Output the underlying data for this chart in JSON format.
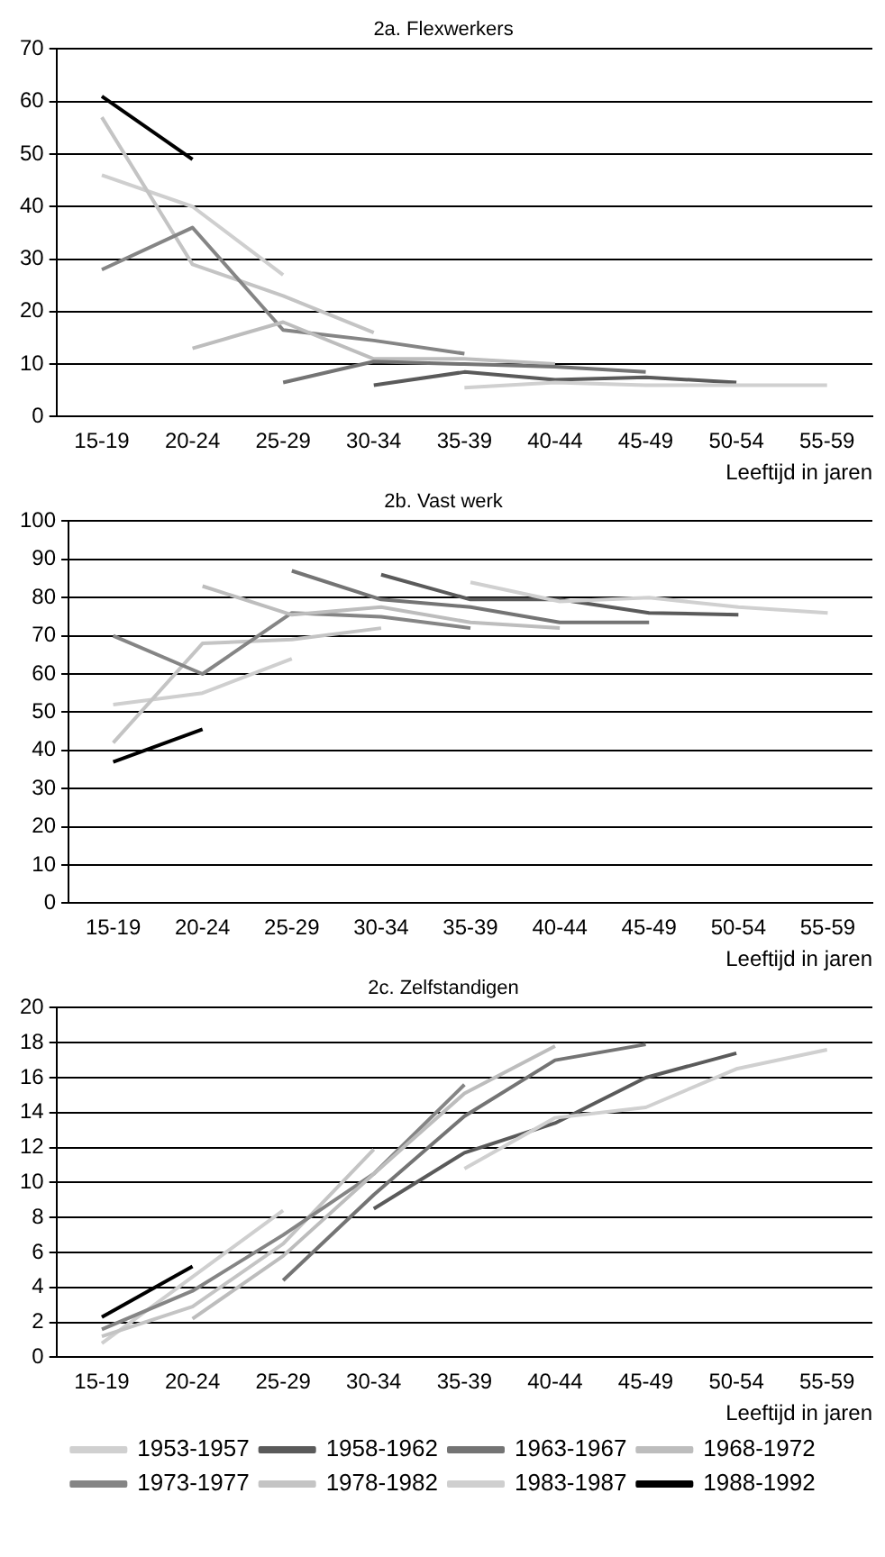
{
  "chart_data": [
    {
      "type": "line",
      "title": "2a. Flexwerkers",
      "xlabel": "Leeftijd in jaren",
      "categories": [
        "15-19",
        "20-24",
        "25-29",
        "30-34",
        "35-39",
        "40-44",
        "45-49",
        "50-54",
        "55-59"
      ],
      "ylim": [
        0,
        70
      ],
      "yticks": [
        0,
        10,
        20,
        30,
        40,
        50,
        60,
        70
      ],
      "grid": "y",
      "marker": "none",
      "series": [
        {
          "color": "#d0d0d0",
          "values": [
            null,
            null,
            null,
            null,
            5.5,
            6.5,
            6,
            6,
            6
          ]
        },
        {
          "color": "#5a5a5a",
          "values": [
            null,
            null,
            null,
            6,
            8.5,
            7,
            7.5,
            6.5,
            null
          ]
        },
        {
          "color": "#747474",
          "values": [
            null,
            null,
            6.5,
            10.5,
            10,
            9.5,
            8.5,
            null,
            null
          ]
        },
        {
          "color": "#bdbdbd",
          "values": [
            null,
            13,
            18,
            11,
            11,
            10,
            null,
            null,
            null
          ]
        },
        {
          "color": "#858585",
          "values": [
            28,
            36,
            16.5,
            14.5,
            12,
            null,
            null,
            null,
            null
          ]
        },
        {
          "color": "#c4c4c4",
          "values": [
            57,
            29,
            23,
            16,
            null,
            null,
            null,
            null,
            null
          ]
        },
        {
          "color": "#cfcfcf",
          "values": [
            46,
            40,
            27,
            null,
            null,
            null,
            null,
            null,
            null
          ]
        },
        {
          "color": "#000000",
          "values": [
            61,
            49,
            null,
            null,
            null,
            null,
            null,
            null,
            null
          ]
        }
      ]
    },
    {
      "type": "line",
      "title": "2b. Vast werk",
      "xlabel": "Leeftijd in jaren",
      "categories": [
        "15-19",
        "20-24",
        "25-29",
        "30-34",
        "35-39",
        "40-44",
        "45-49",
        "50-54",
        "55-59"
      ],
      "ylim": [
        0,
        100
      ],
      "yticks": [
        0,
        10,
        20,
        30,
        40,
        50,
        60,
        70,
        80,
        90,
        100
      ],
      "grid": "y",
      "marker": "none",
      "series": [
        {
          "color": "#d0d0d0",
          "values": [
            null,
            null,
            null,
            null,
            84,
            79,
            80,
            77.5,
            76
          ]
        },
        {
          "color": "#5a5a5a",
          "values": [
            null,
            null,
            null,
            86,
            79.5,
            79.5,
            76,
            75.5,
            null
          ]
        },
        {
          "color": "#747474",
          "values": [
            null,
            null,
            87,
            79.5,
            77.5,
            73.5,
            73.5,
            null,
            null
          ]
        },
        {
          "color": "#bdbdbd",
          "values": [
            null,
            83,
            75.5,
            77.5,
            73.5,
            72,
            null,
            null,
            null
          ]
        },
        {
          "color": "#858585",
          "values": [
            70,
            60,
            76,
            75,
            72,
            null,
            null,
            null,
            null
          ]
        },
        {
          "color": "#c4c4c4",
          "values": [
            42,
            68,
            69,
            72,
            null,
            null,
            null,
            null,
            null
          ]
        },
        {
          "color": "#cfcfcf",
          "values": [
            52,
            55,
            64,
            null,
            null,
            null,
            null,
            null,
            null
          ]
        },
        {
          "color": "#000000",
          "values": [
            37,
            45.5,
            null,
            null,
            null,
            null,
            null,
            null,
            null
          ]
        }
      ]
    },
    {
      "type": "line",
      "title": "2c. Zelfstandigen",
      "xlabel": "Leeftijd in jaren",
      "categories": [
        "15-19",
        "20-24",
        "25-29",
        "30-34",
        "35-39",
        "40-44",
        "45-49",
        "50-54",
        "55-59"
      ],
      "ylim": [
        0,
        20
      ],
      "yticks": [
        0,
        2,
        4,
        6,
        8,
        10,
        12,
        14,
        16,
        18,
        20
      ],
      "grid": "y",
      "marker": "none",
      "legend": "bottom",
      "series": [
        {
          "name": "1953-1957",
          "color": "#d0d0d0",
          "values": [
            null,
            null,
            null,
            null,
            10.8,
            13.7,
            14.3,
            16.5,
            17.6
          ]
        },
        {
          "name": "1958-1962",
          "color": "#5a5a5a",
          "values": [
            null,
            null,
            null,
            8.5,
            11.7,
            13.4,
            16,
            17.4,
            null
          ]
        },
        {
          "name": "1963-1967",
          "color": "#747474",
          "values": [
            null,
            null,
            4.4,
            9.3,
            13.8,
            17,
            17.9,
            null,
            null
          ]
        },
        {
          "name": "1968-1972",
          "color": "#bdbdbd",
          "values": [
            null,
            2.2,
            5.8,
            10.5,
            15.1,
            17.8,
            null,
            null,
            null
          ]
        },
        {
          "name": "1973-1977",
          "color": "#858585",
          "values": [
            1.6,
            3.8,
            7,
            10.5,
            15.6,
            null,
            null,
            null,
            null
          ]
        },
        {
          "name": "1978-1982",
          "color": "#c4c4c4",
          "values": [
            1.2,
            2.9,
            6.5,
            11.9,
            null,
            null,
            null,
            null,
            null
          ]
        },
        {
          "name": "1983-1987",
          "color": "#cfcfcf",
          "values": [
            0.8,
            4.6,
            8.4,
            null,
            null,
            null,
            null,
            null,
            null
          ]
        },
        {
          "name": "1988-1992",
          "color": "#000000",
          "values": [
            2.3,
            5.2,
            null,
            null,
            null,
            null,
            null,
            null,
            null
          ]
        }
      ]
    }
  ]
}
